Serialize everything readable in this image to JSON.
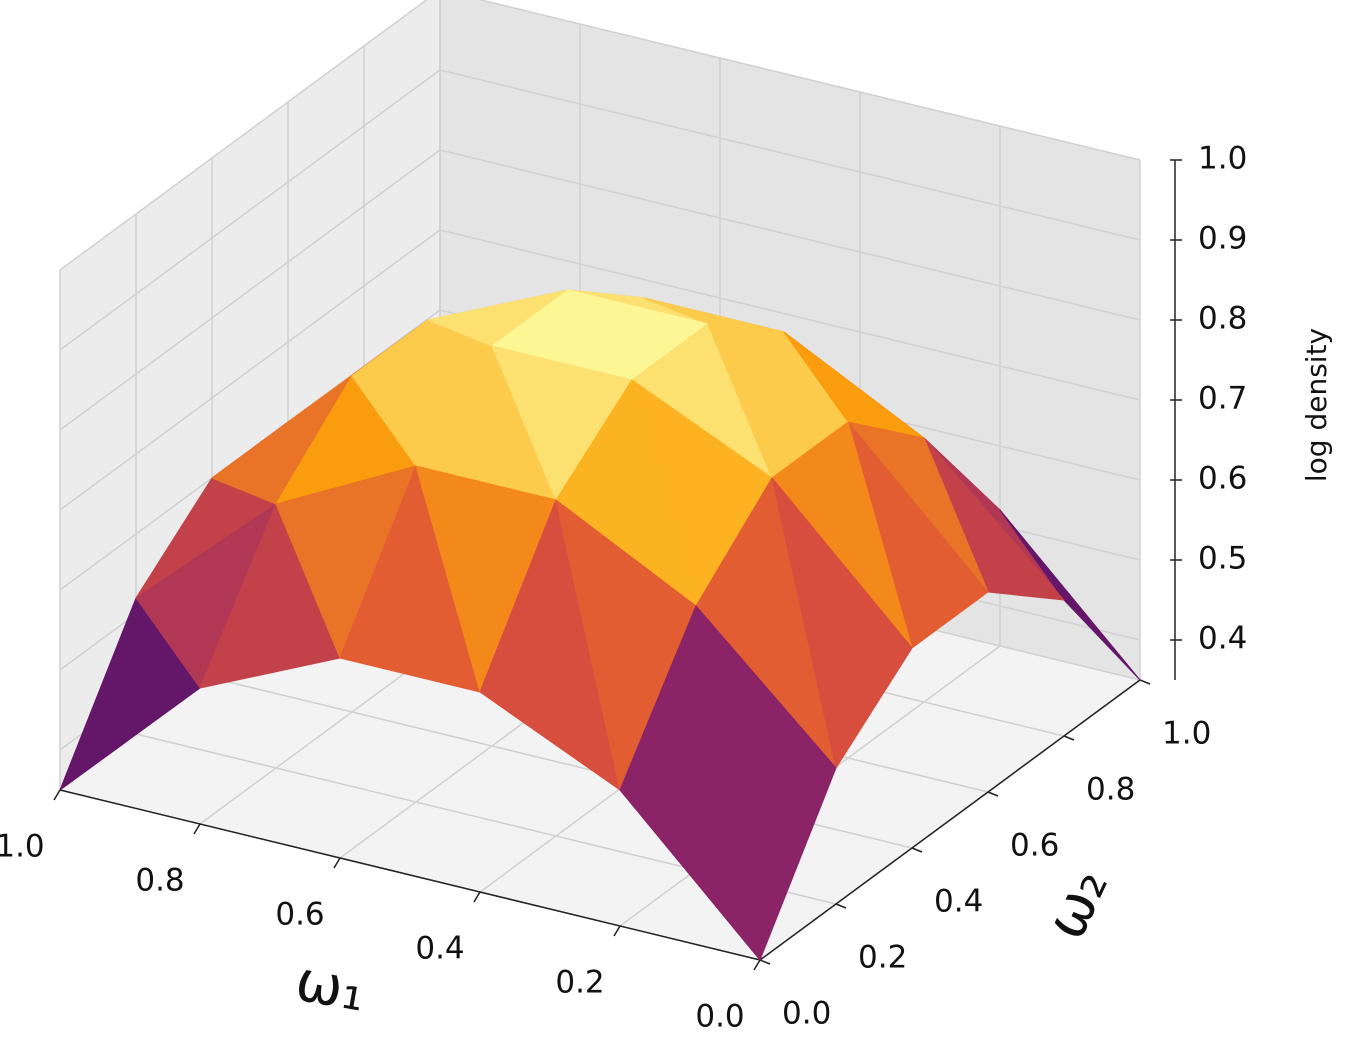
{
  "chart_data": {
    "type": "surface3d",
    "x_label": "ω₁",
    "y_label": "ω₂",
    "z_label": "log density",
    "x": [
      0,
      0.2,
      0.4,
      0.6,
      0.8,
      1.0
    ],
    "y": [
      0,
      0.2,
      0.4,
      0.6,
      0.8,
      1.0
    ],
    "z": [
      [
        0.35,
        0.52,
        0.6,
        0.6,
        0.52,
        0.35
      ],
      [
        0.52,
        0.68,
        0.77,
        0.77,
        0.68,
        0.52
      ],
      [
        0.6,
        0.77,
        0.85,
        0.85,
        0.77,
        0.6
      ],
      [
        0.6,
        0.77,
        0.85,
        0.85,
        0.77,
        0.6
      ],
      [
        0.52,
        0.68,
        0.77,
        0.77,
        0.68,
        0.52
      ],
      [
        0.35,
        0.52,
        0.6,
        0.6,
        0.52,
        0.35
      ]
    ],
    "xlim": [
      0,
      1
    ],
    "ylim": [
      0,
      1
    ],
    "zlim": [
      0.35,
      1.0
    ],
    "xticks": [
      {
        "value": 0,
        "label": "0.0"
      },
      {
        "value": 0.2,
        "label": "0.2"
      },
      {
        "value": 0.4,
        "label": "0.4"
      },
      {
        "value": 0.6,
        "label": "0.6"
      },
      {
        "value": 0.8,
        "label": "0.8"
      },
      {
        "value": 1.0,
        "label": "1.0"
      }
    ],
    "yticks": [
      {
        "value": 0,
        "label": "0.0"
      },
      {
        "value": 0.2,
        "label": "0.2"
      },
      {
        "value": 0.4,
        "label": "0.4"
      },
      {
        "value": 0.6,
        "label": "0.6"
      },
      {
        "value": 0.8,
        "label": "0.8"
      },
      {
        "value": 1.0,
        "label": "1.0"
      }
    ],
    "zticks": [
      {
        "value": 0.4,
        "label": "0.4"
      },
      {
        "value": 0.5,
        "label": "0.5"
      },
      {
        "value": 0.6,
        "label": "0.6"
      },
      {
        "value": 0.7,
        "label": "0.7"
      },
      {
        "value": 0.8,
        "label": "0.8"
      },
      {
        "value": 0.9,
        "label": "0.9"
      },
      {
        "value": 1.0,
        "label": "1.0"
      }
    ],
    "colormap": "inferno",
    "grid": true
  }
}
